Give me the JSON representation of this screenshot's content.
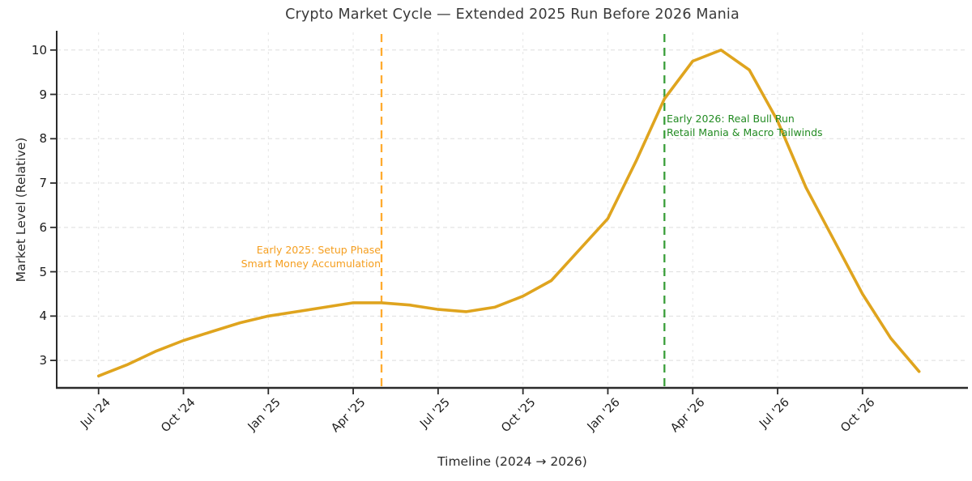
{
  "chart_data": {
    "type": "line",
    "title": "Crypto Market Cycle — Extended 2025 Run Before 2026 Mania",
    "xlabel": "Timeline (2024 → 2026)",
    "ylabel": "Market Level (Relative)",
    "grid": true,
    "legend": "none",
    "ylim": [
      2.4,
      10.4
    ],
    "y_ticks": [
      3,
      4,
      5,
      6,
      7,
      8,
      9,
      10
    ],
    "x_tick_labels": [
      "Jul '24",
      "Oct '24",
      "Jan '25",
      "Apr '25",
      "Jul '25",
      "Oct '25",
      "Jan '26",
      "Apr '26",
      "Jul '26",
      "Oct '26"
    ],
    "x_tick_month_indices": [
      0,
      3,
      6,
      9,
      12,
      15,
      18,
      21,
      24,
      27
    ],
    "x": [
      "Jul '24",
      "Aug '24",
      "Sep '24",
      "Oct '24",
      "Nov '24",
      "Dec '24",
      "Jan '25",
      "Feb '25",
      "Mar '25",
      "Apr '25",
      "May '25",
      "Jun '25",
      "Jul '25",
      "Aug '25",
      "Sep '25",
      "Oct '25",
      "Nov '25",
      "Dec '25",
      "Jan '26",
      "Feb '26",
      "Mar '26",
      "Apr '26",
      "May '26",
      "Jun '26",
      "Jul '26",
      "Aug '26",
      "Sep '26",
      "Oct '26",
      "Nov '26",
      "Dec '26"
    ],
    "series": [
      {
        "name": "Market Level",
        "color": "#DFA41E",
        "values": [
          2.65,
          2.9,
          3.2,
          3.45,
          3.65,
          3.85,
          4.0,
          4.1,
          4.2,
          4.3,
          4.3,
          4.25,
          4.15,
          4.1,
          4.2,
          4.45,
          4.8,
          5.5,
          6.2,
          7.5,
          8.9,
          9.75,
          10.0,
          9.55,
          8.4,
          6.9,
          5.7,
          4.5,
          3.5,
          2.75
        ]
      }
    ],
    "vlines": [
      {
        "month": "May '25",
        "month_index": 10,
        "style": "dashed",
        "color": "#FFAB2E"
      },
      {
        "month": "Mar '26",
        "month_index": 20,
        "style": "dashed",
        "color": "#3A9E3A"
      }
    ],
    "annotations": [
      {
        "id": "setup-2025",
        "lines": [
          "Early 2025: Setup Phase",
          "Smart Money Accumulation"
        ],
        "color": "#F59E1E",
        "anchor_month": "May '25",
        "align": "right"
      },
      {
        "id": "mania-2026",
        "lines": [
          "Early 2026: Real Bull Run",
          "Retail Mania & Macro Tailwinds"
        ],
        "color": "#228B22",
        "anchor_month": "Mar '26",
        "align": "left"
      }
    ]
  },
  "style_colors": {
    "line": "#DFA41E",
    "setup_orange": "#FFAB2E",
    "mania_green": "#3A9E3A",
    "grid": "#DEDEDE",
    "axis": "#2b2b2b",
    "title_text": "#3a3a3a"
  }
}
